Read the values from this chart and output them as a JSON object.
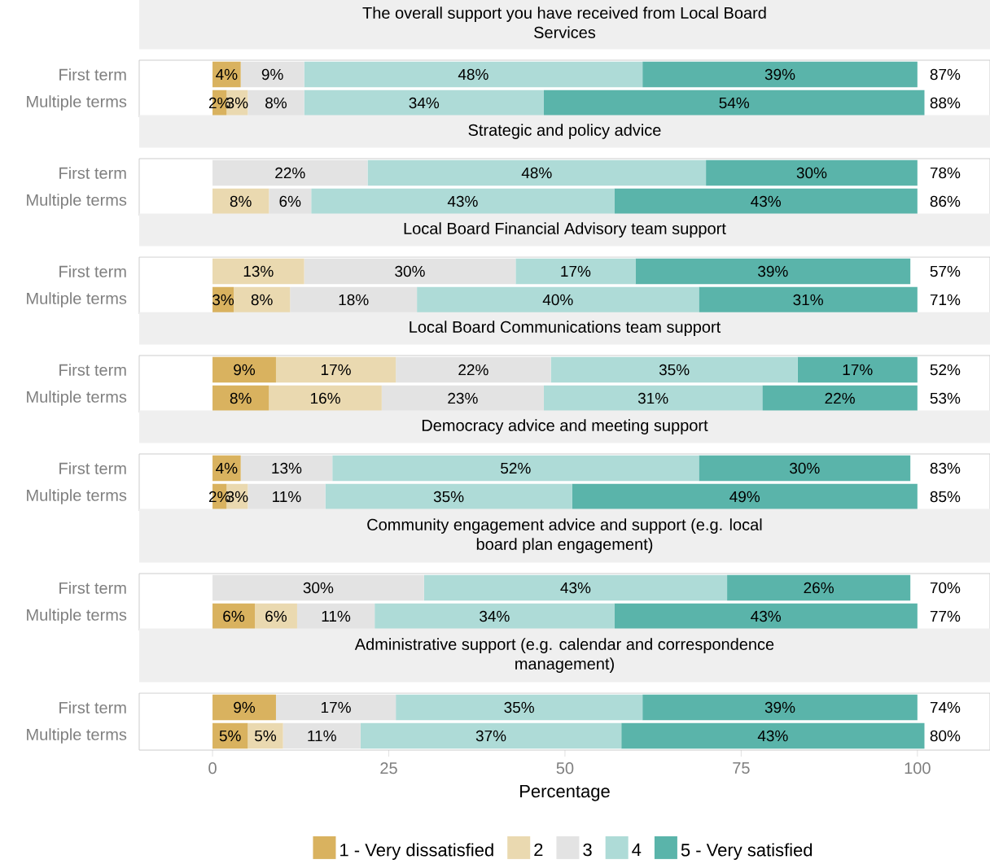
{
  "chart_data": [
    {
      "type": "bar",
      "orientation": "horizontal",
      "stacked": true,
      "title": "The overall support you have received from Local Board Services",
      "categories": [
        "First term",
        "Multiple terms"
      ],
      "xlim": [
        -10.4,
        110.3
      ],
      "tick_labels": "y",
      "annotations": [
        "87%",
        "88%"
      ],
      "series": [
        {
          "color": "#d9b25f",
          "values": [
            4,
            2
          ],
          "value_labels": [
            "4%",
            "2%"
          ]
        },
        {
          "color": "#ead9b0",
          "values": [
            0,
            3
          ],
          "value_labels": [
            null,
            "3%"
          ]
        },
        {
          "color": "#e3e3e3",
          "values": [
            9,
            8
          ],
          "value_labels": [
            "9%",
            "8%"
          ]
        },
        {
          "color": "#aedbd7",
          "values": [
            48,
            34
          ],
          "value_labels": [
            "48%",
            "34%"
          ]
        },
        {
          "color": "#5ab4aa",
          "values": [
            39,
            54
          ],
          "value_labels": [
            "39%",
            "54%"
          ]
        }
      ]
    },
    {
      "type": "bar",
      "orientation": "horizontal",
      "stacked": true,
      "title": "Strategic and policy advice",
      "categories": [
        "First term",
        "Multiple terms"
      ],
      "xlim": [
        -10.4,
        110.3
      ],
      "tick_labels": "y",
      "annotations": [
        "78%",
        "86%"
      ],
      "series": [
        {
          "color": "#d9b25f",
          "values": [
            0,
            0
          ],
          "value_labels": [
            null,
            null
          ]
        },
        {
          "color": "#ead9b0",
          "values": [
            0,
            8
          ],
          "value_labels": [
            null,
            "8%"
          ]
        },
        {
          "color": "#e3e3e3",
          "values": [
            22,
            6
          ],
          "value_labels": [
            "22%",
            "6%"
          ]
        },
        {
          "color": "#aedbd7",
          "values": [
            48,
            43
          ],
          "value_labels": [
            "48%",
            "43%"
          ]
        },
        {
          "color": "#5ab4aa",
          "values": [
            30,
            43
          ],
          "value_labels": [
            "30%",
            "43%"
          ]
        }
      ]
    },
    {
      "type": "bar",
      "orientation": "horizontal",
      "stacked": true,
      "title": "Local Board Financial Advisory team support",
      "categories": [
        "First term",
        "Multiple terms"
      ],
      "xlim": [
        -10.4,
        110.3
      ],
      "tick_labels": "y",
      "annotations": [
        "57%",
        "71%"
      ],
      "series": [
        {
          "color": "#d9b25f",
          "values": [
            0,
            3
          ],
          "value_labels": [
            null,
            "3%"
          ]
        },
        {
          "color": "#ead9b0",
          "values": [
            13,
            8
          ],
          "value_labels": [
            "13%",
            "8%"
          ]
        },
        {
          "color": "#e3e3e3",
          "values": [
            30,
            18
          ],
          "value_labels": [
            "30%",
            "18%"
          ]
        },
        {
          "color": "#aedbd7",
          "values": [
            17,
            40
          ],
          "value_labels": [
            "17%",
            "40%"
          ]
        },
        {
          "color": "#5ab4aa",
          "values": [
            39,
            31
          ],
          "value_labels": [
            "39%",
            "31%"
          ]
        }
      ]
    },
    {
      "type": "bar",
      "orientation": "horizontal",
      "stacked": true,
      "title": "Local Board Communications team support",
      "categories": [
        "First term",
        "Multiple terms"
      ],
      "xlim": [
        -10.4,
        110.3
      ],
      "tick_labels": "y",
      "annotations": [
        "52%",
        "53%"
      ],
      "series": [
        {
          "color": "#d9b25f",
          "values": [
            9,
            8
          ],
          "value_labels": [
            "9%",
            "8%"
          ]
        },
        {
          "color": "#ead9b0",
          "values": [
            17,
            16
          ],
          "value_labels": [
            "17%",
            "16%"
          ]
        },
        {
          "color": "#e3e3e3",
          "values": [
            22,
            23
          ],
          "value_labels": [
            "22%",
            "23%"
          ]
        },
        {
          "color": "#aedbd7",
          "values": [
            35,
            31
          ],
          "value_labels": [
            "35%",
            "31%"
          ]
        },
        {
          "color": "#5ab4aa",
          "values": [
            17,
            22
          ],
          "value_labels": [
            "17%",
            "22%"
          ]
        }
      ]
    },
    {
      "type": "bar",
      "orientation": "horizontal",
      "stacked": true,
      "title": "Democracy advice and meeting support",
      "categories": [
        "First term",
        "Multiple terms"
      ],
      "xlim": [
        -10.4,
        110.3
      ],
      "tick_labels": "y",
      "annotations": [
        "83%",
        "85%"
      ],
      "series": [
        {
          "color": "#d9b25f",
          "values": [
            4,
            2
          ],
          "value_labels": [
            "4%",
            "2%"
          ]
        },
        {
          "color": "#ead9b0",
          "values": [
            0,
            3
          ],
          "value_labels": [
            null,
            "3%"
          ]
        },
        {
          "color": "#e3e3e3",
          "values": [
            13,
            11
          ],
          "value_labels": [
            "13%",
            "11%"
          ]
        },
        {
          "color": "#aedbd7",
          "values": [
            52,
            35
          ],
          "value_labels": [
            "52%",
            "35%"
          ]
        },
        {
          "color": "#5ab4aa",
          "values": [
            30,
            49
          ],
          "value_labels": [
            "30%",
            "49%"
          ]
        }
      ]
    },
    {
      "type": "bar",
      "orientation": "horizontal",
      "stacked": true,
      "title": "Community engagement advice and support (e.g. local board plan engagement)",
      "categories": [
        "First term",
        "Multiple terms"
      ],
      "xlim": [
        -10.4,
        110.3
      ],
      "tick_labels": "y",
      "annotations": [
        "70%",
        "77%"
      ],
      "series": [
        {
          "color": "#d9b25f",
          "values": [
            0,
            6
          ],
          "value_labels": [
            null,
            "6%"
          ]
        },
        {
          "color": "#ead9b0",
          "values": [
            0,
            6
          ],
          "value_labels": [
            null,
            "6%"
          ]
        },
        {
          "color": "#e3e3e3",
          "values": [
            30,
            11
          ],
          "value_labels": [
            "30%",
            "11%"
          ]
        },
        {
          "color": "#aedbd7",
          "values": [
            43,
            34
          ],
          "value_labels": [
            "43%",
            "34%"
          ]
        },
        {
          "color": "#5ab4aa",
          "values": [
            26,
            43
          ],
          "value_labels": [
            "26%",
            "43%"
          ]
        }
      ]
    },
    {
      "type": "bar",
      "orientation": "horizontal",
      "stacked": true,
      "title": "Administrative support (e.g. calendar and correspondence management)",
      "categories": [
        "First term",
        "Multiple terms"
      ],
      "xlim": [
        -10.4,
        110.3
      ],
      "xticks": [
        0,
        25,
        50,
        75,
        100
      ],
      "xlabel": "Percentage",
      "legend": "bottom",
      "annotations": [
        "74%",
        "80%"
      ],
      "series": [
        {
          "name": "1 - Very dissatisfied",
          "color": "#d9b25f",
          "values": [
            9,
            5
          ],
          "value_labels": [
            "9%",
            "5%"
          ]
        },
        {
          "name": "2",
          "color": "#ead9b0",
          "values": [
            0,
            5
          ],
          "value_labels": [
            null,
            "5%"
          ]
        },
        {
          "name": "3",
          "color": "#e3e3e3",
          "values": [
            17,
            11
          ],
          "value_labels": [
            "17%",
            "11%"
          ]
        },
        {
          "name": "4",
          "color": "#aedbd7",
          "values": [
            35,
            37
          ],
          "value_labels": [
            "35%",
            "37%"
          ]
        },
        {
          "name": "5 - Very satisfied",
          "color": "#5ab4aa",
          "values": [
            39,
            43
          ],
          "value_labels": [
            "39%",
            "43%"
          ]
        }
      ]
    }
  ]
}
